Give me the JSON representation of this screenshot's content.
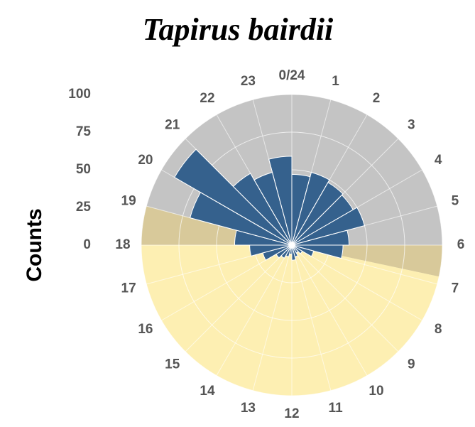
{
  "chart_data": {
    "type": "polar_bar",
    "title": "Tapirus bairdii",
    "y_label": "Counts",
    "categories": [
      "0/24",
      "1",
      "2",
      "3",
      "4",
      "5",
      "6",
      "7",
      "8",
      "9",
      "10",
      "11",
      "12",
      "13",
      "14",
      "15",
      "16",
      "17",
      "18",
      "19",
      "20",
      "21",
      "22",
      "23"
    ],
    "values": [
      47,
      50,
      48,
      47,
      50,
      38,
      34,
      15,
      8,
      6,
      8,
      10,
      6,
      8,
      10,
      12,
      20,
      28,
      38,
      70,
      90,
      55,
      50,
      59
    ],
    "color": "#35618d",
    "ylim": [
      0,
      100
    ],
    "yticks": [
      0,
      25,
      50,
      75,
      100
    ],
    "night_hours": [
      18,
      6.8
    ],
    "night_color": "#c4c4c4",
    "day_hours": [
      6,
      19
    ],
    "day_color": "#fdefb2",
    "overlap_color": "#d8c99a"
  }
}
